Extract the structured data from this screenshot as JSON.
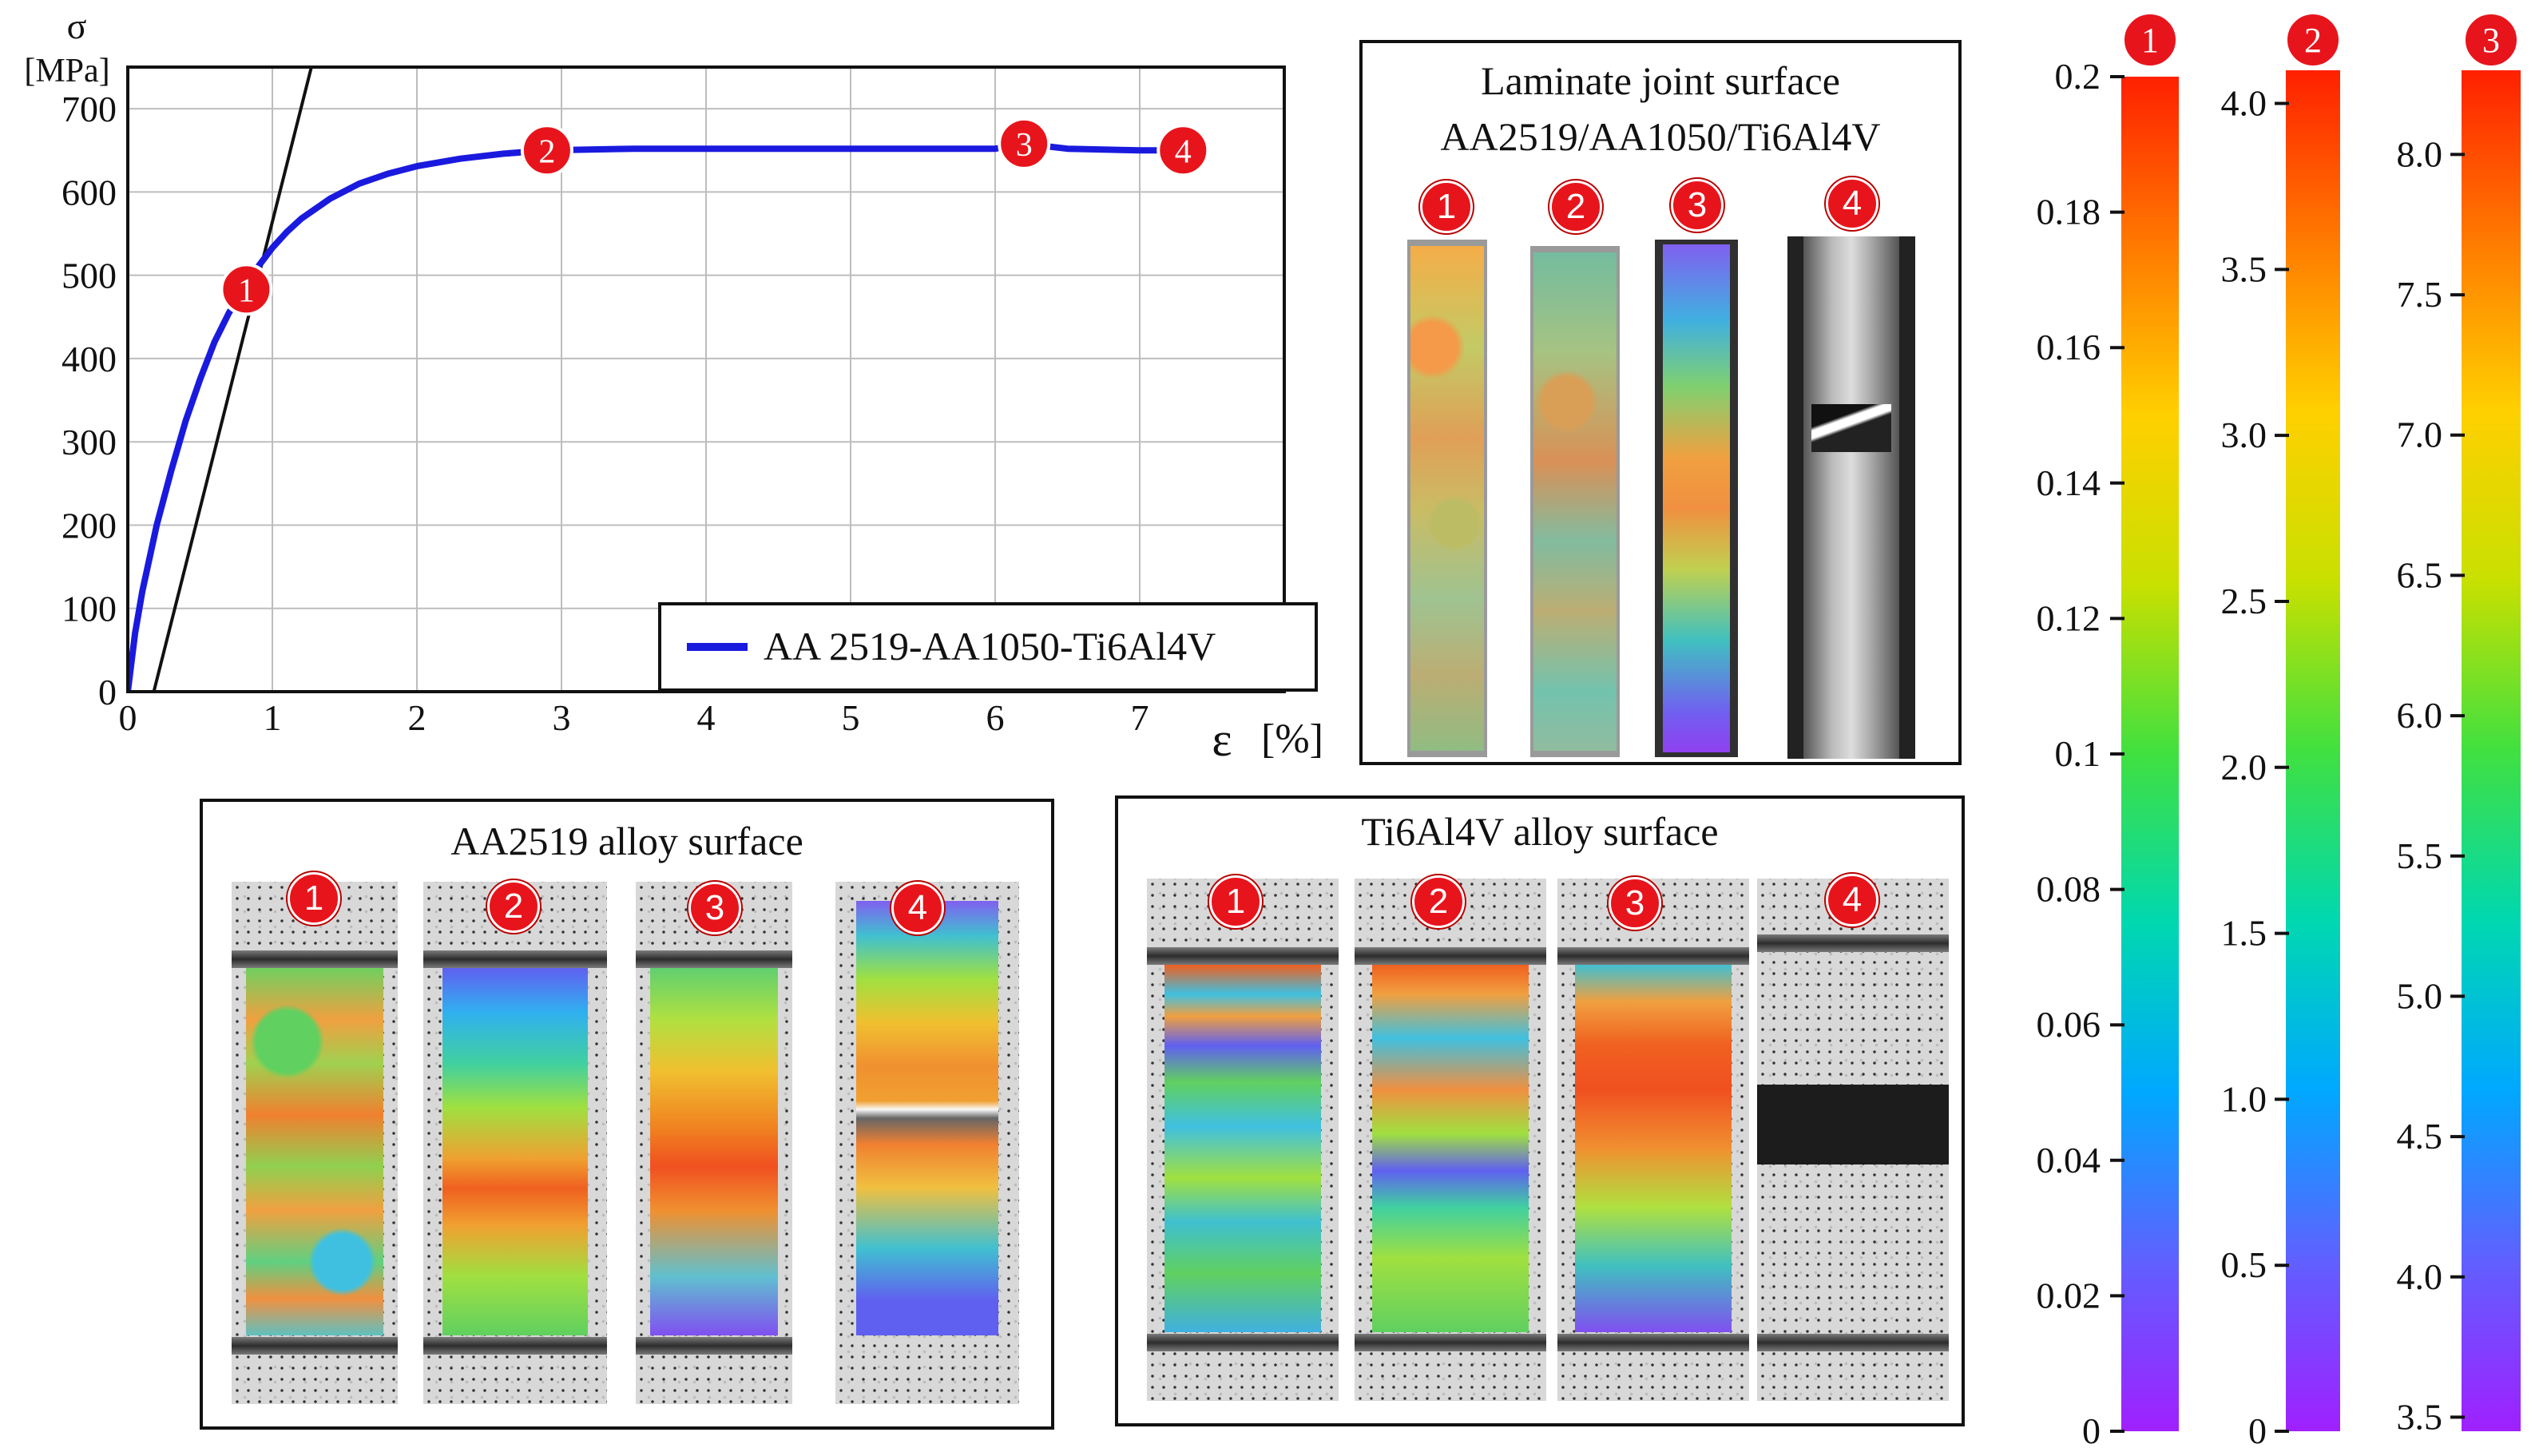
{
  "chart_data": [
    {
      "type": "line",
      "ylabel": "σ [MPa]",
      "ylabel_symbol": "σ",
      "ylabel_unit": "[MPa]",
      "xlabel": "ε [%]",
      "xlabel_symbol": "ε",
      "xlabel_unit": "[%]",
      "xlim": [
        0,
        8
      ],
      "ylim": [
        0,
        750
      ],
      "grid": true,
      "legend_position": "bottom-right",
      "x_ticks": [
        0,
        1,
        2,
        3,
        4,
        5,
        6,
        7
      ],
      "y_ticks": [
        0,
        100,
        200,
        300,
        400,
        500,
        600,
        700
      ],
      "series": [
        {
          "name": "AA 2519-AA1050-Ti6Al4V",
          "color": "#1a1adf",
          "x": [
            0,
            0.05,
            0.1,
            0.2,
            0.3,
            0.4,
            0.5,
            0.6,
            0.7,
            0.8,
            0.9,
            1.0,
            1.1,
            1.2,
            1.4,
            1.6,
            1.8,
            2.0,
            2.3,
            2.6,
            2.9,
            3.5,
            4.0,
            5.0,
            5.5,
            6.0,
            6.2,
            6.5,
            7.0,
            7.3
          ],
          "y": [
            0,
            70,
            120,
            200,
            265,
            325,
            375,
            420,
            455,
            483,
            510,
            533,
            552,
            568,
            592,
            610,
            622,
            631,
            640,
            646,
            650,
            652,
            652,
            652,
            652,
            652,
            658,
            652,
            650,
            650
          ]
        }
      ],
      "elastic_line": {
        "color": "#111111",
        "x": [
          0.18,
          1.27
        ],
        "y": [
          0,
          750
        ]
      },
      "markers": [
        {
          "label": "1",
          "x": 0.82,
          "y": 483
        },
        {
          "label": "2",
          "x": 2.9,
          "y": 650
        },
        {
          "label": "3",
          "x": 6.2,
          "y": 658
        },
        {
          "label": "4",
          "x": 7.3,
          "y": 650
        }
      ]
    },
    {
      "type": "colorbar",
      "badge": "1",
      "range": [
        0,
        0.2
      ],
      "ticks": [
        "0.2",
        "0.18",
        "0.16",
        "0.14",
        "0.12",
        "0.1",
        "0.08",
        "0.06",
        "0.04",
        "0.02",
        "0"
      ],
      "tick_values": [
        0.2,
        0.18,
        0.16,
        0.14,
        0.12,
        0.1,
        0.08,
        0.06,
        0.04,
        0.02,
        0
      ]
    },
    {
      "type": "colorbar",
      "badge": "2",
      "range": [
        0,
        4.1
      ],
      "ticks": [
        "4.0",
        "3.5",
        "3.0",
        "2.5",
        "2.0",
        "1.5",
        "1.0",
        "0.5",
        "0"
      ],
      "tick_values": [
        4.0,
        3.5,
        3.0,
        2.5,
        2.0,
        1.5,
        1.0,
        0.5,
        0
      ]
    },
    {
      "type": "colorbar",
      "badge": "3",
      "range": [
        3.45,
        8.3
      ],
      "ticks": [
        "8.0",
        "7.5",
        "7.0",
        "6.5",
        "6.0",
        "5.5",
        "5.0",
        "4.5",
        "4.0",
        "3.5"
      ],
      "tick_values": [
        8.0,
        7.5,
        7.0,
        6.5,
        6.0,
        5.5,
        5.0,
        4.5,
        4.0,
        3.5
      ]
    }
  ],
  "panels": {
    "laminate": {
      "title_line1": "Laminate joint surface",
      "title_line2": "AA2519/AA1050/Ti6Al4V",
      "badges": [
        "1",
        "2",
        "3",
        "4"
      ]
    },
    "aa2519": {
      "title": "AA2519 alloy surface",
      "badges": [
        "1",
        "2",
        "3",
        "4"
      ]
    },
    "ti6al4v": {
      "title": "Ti6Al4V alloy surface",
      "badges": [
        "1",
        "2",
        "3",
        "4"
      ]
    }
  },
  "colors": {
    "badge": "#e8141c",
    "series": "#1a1adf",
    "colormap": [
      "#ff2000",
      "#ff7a00",
      "#ffd000",
      "#c8e000",
      "#40e040",
      "#00d8b0",
      "#00a8ff",
      "#6060ff",
      "#a020ff"
    ]
  }
}
